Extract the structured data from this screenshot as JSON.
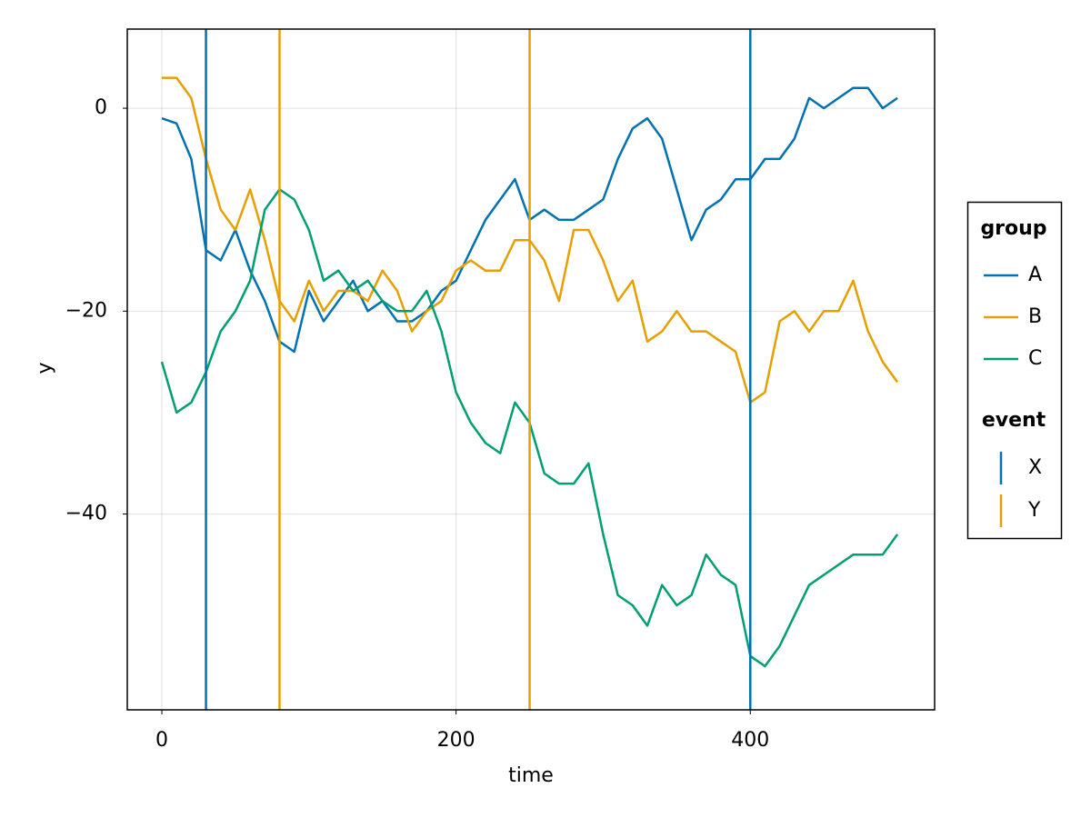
{
  "chart_data": {
    "type": "line",
    "x_label": "time",
    "y_label": "y",
    "xlim": [
      -23.5,
      525.3
    ],
    "ylim": [
      -59.3,
      7.8
    ],
    "xticks": [
      0,
      200,
      400
    ],
    "yticks": [
      0,
      {
        "value": -20,
        "label": "−20"
      },
      {
        "value": -40,
        "label": "−40"
      }
    ],
    "grid": true,
    "legend_position": "right",
    "legend_title": "group",
    "x": [
      0,
      10,
      20,
      30,
      40,
      50,
      60,
      70,
      80,
      90,
      100,
      110,
      120,
      130,
      140,
      150,
      160,
      170,
      180,
      190,
      200,
      210,
      220,
      230,
      240,
      250,
      260,
      270,
      280,
      290,
      300,
      310,
      320,
      330,
      340,
      350,
      360,
      370,
      380,
      390,
      400,
      410,
      420,
      430,
      440,
      450,
      460,
      470,
      480,
      490,
      500
    ],
    "series": [
      {
        "name": "A",
        "color": "#0072b2",
        "values": [
          -1,
          -1.5,
          -5,
          -14,
          -15,
          -12,
          -16,
          -19,
          -23,
          -24,
          -18,
          -21,
          -19,
          -17,
          -20,
          -19,
          -21,
          -21,
          -20,
          -18,
          -17,
          -14,
          -11,
          -9,
          -7,
          -11,
          -10,
          -11,
          -11,
          -10,
          -9,
          -5,
          -2,
          -1,
          -3,
          -8,
          -13,
          -10,
          -9,
          -7,
          -7,
          -5,
          -5,
          -3,
          1,
          0,
          1,
          2,
          2,
          0,
          1
        ]
      },
      {
        "name": "B",
        "color": "#e69f00",
        "values": [
          3,
          3,
          1,
          -5,
          -10,
          -12,
          -8,
          -13,
          -19,
          -21,
          -17,
          -20,
          -18,
          -18,
          -19,
          -16,
          -18,
          -22,
          -20,
          -19,
          -16,
          -15,
          -16,
          -16,
          -13,
          -13,
          -15,
          -19,
          -12,
          -12,
          -15,
          -19,
          -17,
          -23,
          -22,
          -20,
          -22,
          -22,
          -23,
          -24,
          -29,
          -28,
          -21,
          -20,
          -22,
          -20,
          -20,
          -17,
          -22,
          -25,
          -27
        ]
      },
      {
        "name": "C",
        "color": "#009e73",
        "values": [
          -25,
          -30,
          -29,
          -26,
          -22,
          -20,
          -17,
          -10,
          -8,
          -9,
          -12,
          -17,
          -16,
          -18,
          -17,
          -19,
          -20,
          -20,
          -18,
          -22,
          -28,
          -31,
          -33,
          -34,
          -29,
          -31,
          -36,
          -37,
          -37,
          -35,
          -42,
          -48,
          -49,
          -51,
          -47,
          -49,
          -48,
          -44,
          -46,
          -47,
          -54,
          -55,
          -53,
          -50,
          -47,
          -46,
          -45,
          -44,
          -44,
          -44,
          -42
        ]
      }
    ],
    "event_title": "event",
    "events": [
      {
        "name": "X",
        "color": "#0072b2",
        "x": [
          30,
          400
        ]
      },
      {
        "name": "Y",
        "color": "#e69f00",
        "x": [
          80,
          250
        ]
      }
    ]
  }
}
